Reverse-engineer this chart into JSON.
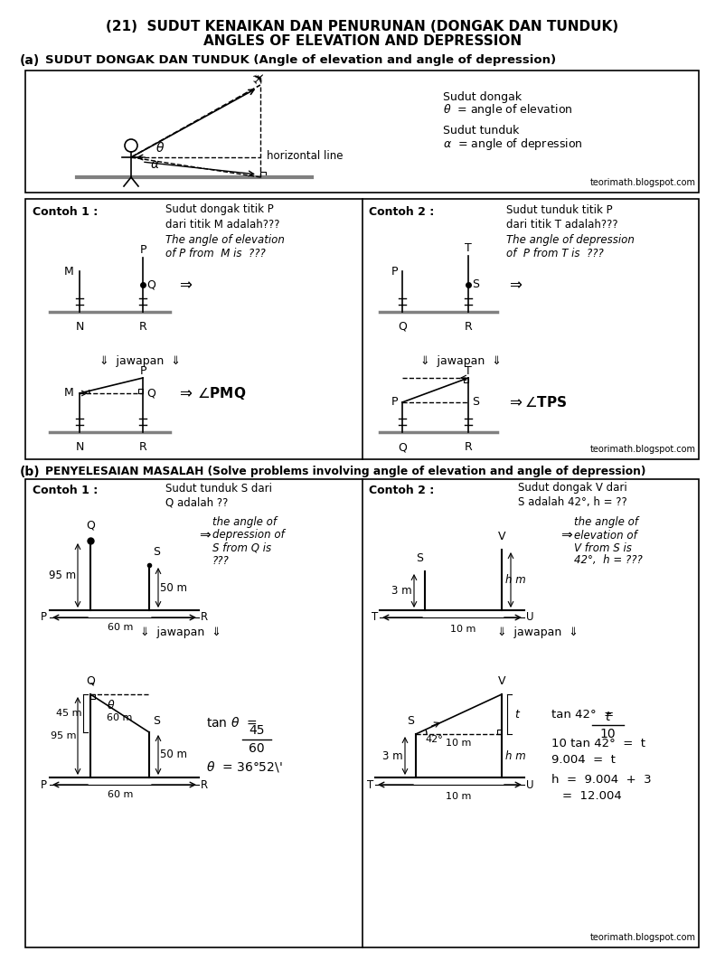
{
  "title_line1": "(21)  SUDUT KENAIKAN DAN PENURUNAN (DONGAK DAN TUNDUK)",
  "title_line2": "ANGLES OF ELEVATION AND DEPRESSION",
  "section_a_label": "(a)",
  "section_a_title": "SUDUT DONGAK DAN TUNDUK (Angle of elevation and angle of depression)",
  "section_b_label": "(b)",
  "section_b_title": "PENYELESAIAN MASALAH (Solve problems involving angle of elevation and angle of depression)",
  "watermark": "teorimath.blogspot.com",
  "bg_color": "#ffffff"
}
